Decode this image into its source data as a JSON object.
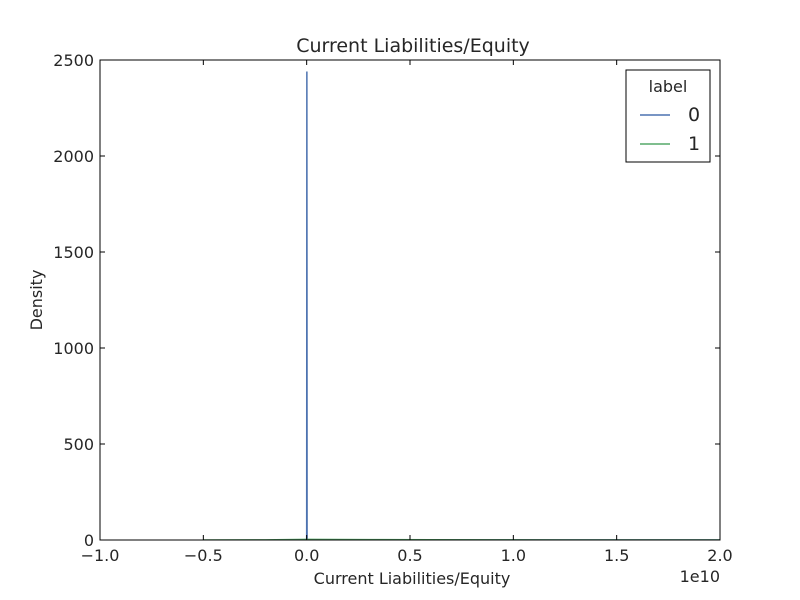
{
  "chart_data": {
    "type": "line",
    "title": "Current Liabilities/Equity",
    "xlabel": "Current Liabilities/Equity",
    "ylabel": "Density",
    "x_offset_label": "1e10",
    "xlim": [
      -1.0,
      2.0
    ],
    "ylim": [
      0,
      2500
    ],
    "x_scale": 10000000000,
    "x_ticks": [
      -1.0,
      -0.5,
      0.0,
      0.5,
      1.0,
      1.5,
      2.0
    ],
    "x_tick_labels": [
      "−1.0",
      "−0.5",
      "0.0",
      "0.5",
      "1.0",
      "1.5",
      "2.0"
    ],
    "y_ticks": [
      0,
      500,
      1000,
      1500,
      2000,
      2500
    ],
    "y_tick_labels": [
      "0",
      "500",
      "1000",
      "1500",
      "2000",
      "2500"
    ],
    "grid": false,
    "legend": {
      "title": "label",
      "position": "top-right",
      "entries": [
        "0",
        "1"
      ]
    },
    "series": [
      {
        "name": "0",
        "color": "#4c72b0",
        "points": [
          [
            -0.01,
            0
          ],
          [
            0.0,
            0
          ],
          [
            0.0005,
            1100
          ],
          [
            0.0008,
            2000
          ],
          [
            0.001,
            2440
          ],
          [
            0.0012,
            2000
          ],
          [
            0.0015,
            1400
          ],
          [
            0.002,
            0
          ],
          [
            0.01,
            0
          ],
          [
            2.0,
            0
          ]
        ]
      },
      {
        "name": "1",
        "color": "#55a868",
        "points": [
          [
            -0.5,
            0
          ],
          [
            -0.2,
            0.5
          ],
          [
            0.0,
            3
          ],
          [
            0.3,
            2
          ],
          [
            0.6,
            1.2
          ],
          [
            0.9,
            0.8
          ],
          [
            1.25,
            0.3
          ],
          [
            1.5,
            0
          ],
          [
            2.0,
            0
          ]
        ]
      }
    ]
  }
}
